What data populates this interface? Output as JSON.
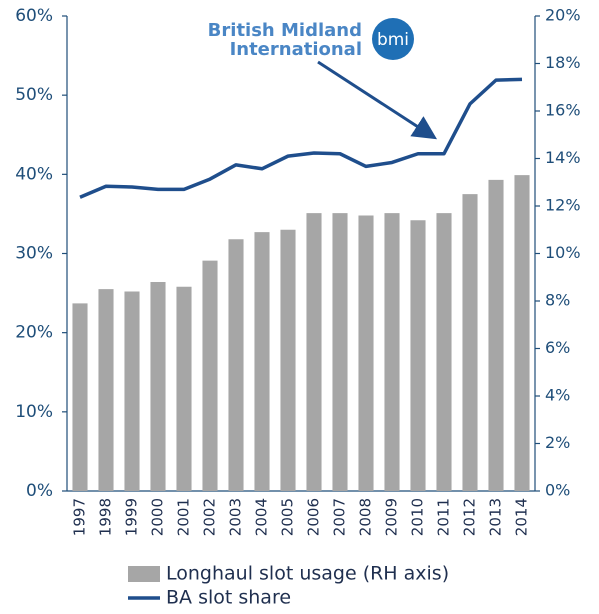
{
  "chart_data": {
    "type": "combo",
    "categories": [
      "1997",
      "1998",
      "1999",
      "2000",
      "2001",
      "2002",
      "2003",
      "2004",
      "2005",
      "2006",
      "2007",
      "2008",
      "2009",
      "2010",
      "2011",
      "2012",
      "2013",
      "2014"
    ],
    "series": [
      {
        "name": "Longhaul slot usage (RH axis)",
        "type": "bar",
        "axis": "y2",
        "color": "#a6a6a6",
        "values": [
          7.9,
          8.5,
          8.4,
          8.8,
          8.6,
          9.7,
          10.6,
          10.9,
          11.0,
          11.7,
          11.7,
          11.6,
          11.7,
          11.4,
          11.7,
          12.5,
          13.1,
          13.3
        ]
      },
      {
        "name": "BA slot share",
        "type": "line",
        "axis": "y",
        "color": "#1f4e8c",
        "values": [
          37.1,
          38.5,
          38.4,
          38.1,
          38.1,
          39.4,
          41.2,
          40.7,
          42.3,
          42.7,
          42.6,
          41.0,
          41.5,
          42.6,
          42.6,
          48.9,
          51.9,
          52.0
        ]
      }
    ],
    "ylim": [
      0,
      60
    ],
    "yticks": [
      {
        "value": 0,
        "label": "0%"
      },
      {
        "value": 10,
        "label": "10%"
      },
      {
        "value": 20,
        "label": "20%"
      },
      {
        "value": 30,
        "label": "30%"
      },
      {
        "value": 40,
        "label": "40%"
      },
      {
        "value": 50,
        "label": "50%"
      },
      {
        "value": 60,
        "label": "60%"
      }
    ],
    "y2lim": [
      0,
      20
    ],
    "y2ticks": [
      {
        "value": 0,
        "label": "0%"
      },
      {
        "value": 2,
        "label": "2%"
      },
      {
        "value": 4,
        "label": "4%"
      },
      {
        "value": 6,
        "label": "6%"
      },
      {
        "value": 8,
        "label": "8%"
      },
      {
        "value": 10,
        "label": "10%"
      },
      {
        "value": 12,
        "label": "12%"
      },
      {
        "value": 14,
        "label": "14%"
      },
      {
        "value": 16,
        "label": "16%"
      },
      {
        "value": 18,
        "label": "18%"
      },
      {
        "value": 20,
        "label": "20%"
      }
    ],
    "grid": false,
    "legend": "bottom",
    "annotation": {
      "lines": [
        "British Midland",
        "International"
      ],
      "logo": "bmi"
    }
  }
}
